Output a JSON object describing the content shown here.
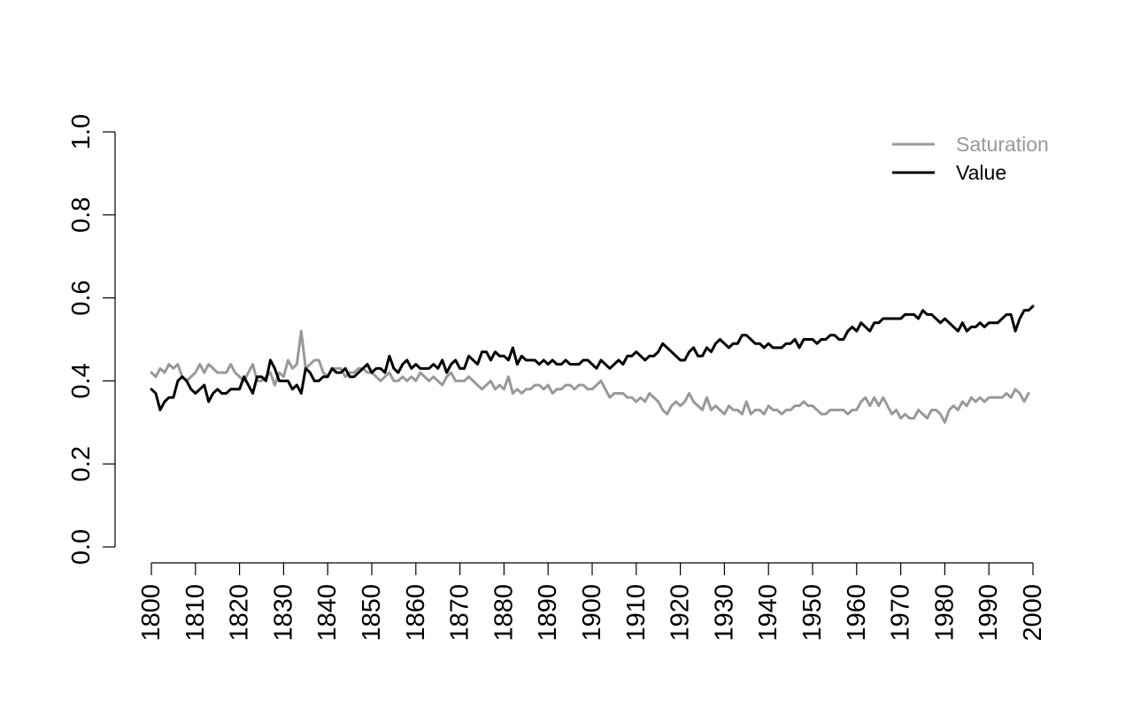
{
  "chart_data": {
    "type": "line",
    "title": "",
    "xlabel": "",
    "ylabel": "",
    "xlim": [
      1800,
      2000
    ],
    "ylim": [
      0,
      1
    ],
    "x_ticks": [
      1800,
      1810,
      1820,
      1830,
      1840,
      1850,
      1860,
      1870,
      1880,
      1890,
      1900,
      1910,
      1920,
      1930,
      1940,
      1950,
      1960,
      1970,
      1980,
      1990,
      2000
    ],
    "y_ticks": [
      "0.0",
      "0.2",
      "0.4",
      "0.6",
      "0.8",
      "1.0"
    ],
    "grid": false,
    "legend_position": "top-right",
    "series": [
      {
        "name": "Saturation",
        "color": "#999999",
        "x_start": 1800,
        "x_step": 1,
        "values": [
          0.42,
          0.41,
          0.43,
          0.42,
          0.44,
          0.43,
          0.44,
          0.41,
          0.4,
          0.41,
          0.42,
          0.44,
          0.42,
          0.44,
          0.43,
          0.42,
          0.42,
          0.42,
          0.44,
          0.42,
          0.41,
          0.4,
          0.42,
          0.44,
          0.4,
          0.4,
          0.41,
          0.42,
          0.39,
          0.42,
          0.41,
          0.45,
          0.43,
          0.44,
          0.52,
          0.43,
          0.44,
          0.45,
          0.45,
          0.42,
          0.41,
          0.43,
          0.43,
          0.43,
          0.41,
          0.42,
          0.42,
          0.43,
          0.43,
          0.42,
          0.42,
          0.41,
          0.4,
          0.41,
          0.42,
          0.4,
          0.4,
          0.41,
          0.4,
          0.41,
          0.4,
          0.42,
          0.41,
          0.4,
          0.41,
          0.4,
          0.39,
          0.41,
          0.42,
          0.4,
          0.4,
          0.4,
          0.41,
          0.4,
          0.39,
          0.38,
          0.39,
          0.4,
          0.38,
          0.39,
          0.38,
          0.41,
          0.37,
          0.38,
          0.37,
          0.38,
          0.38,
          0.39,
          0.39,
          0.38,
          0.39,
          0.37,
          0.38,
          0.38,
          0.39,
          0.39,
          0.38,
          0.39,
          0.39,
          0.38,
          0.38,
          0.39,
          0.4,
          0.38,
          0.36,
          0.37,
          0.37,
          0.37,
          0.36,
          0.36,
          0.35,
          0.36,
          0.35,
          0.37,
          0.36,
          0.35,
          0.33,
          0.32,
          0.34,
          0.35,
          0.34,
          0.35,
          0.37,
          0.35,
          0.34,
          0.33,
          0.36,
          0.33,
          0.34,
          0.33,
          0.32,
          0.34,
          0.33,
          0.33,
          0.32,
          0.35,
          0.32,
          0.33,
          0.33,
          0.32,
          0.34,
          0.33,
          0.33,
          0.32,
          0.33,
          0.33,
          0.34,
          0.34,
          0.35,
          0.34,
          0.34,
          0.33,
          0.32,
          0.32,
          0.33,
          0.33,
          0.33,
          0.33,
          0.32,
          0.33,
          0.33,
          0.35,
          0.36,
          0.34,
          0.36,
          0.34,
          0.36,
          0.34,
          0.32,
          0.33,
          0.31,
          0.32,
          0.31,
          0.31,
          0.33,
          0.32,
          0.31,
          0.33,
          0.33,
          0.32,
          0.3,
          0.33,
          0.34,
          0.33,
          0.35,
          0.34,
          0.36,
          0.35,
          0.36,
          0.35,
          0.36,
          0.36,
          0.36,
          0.36,
          0.37,
          0.36,
          0.38,
          0.37,
          0.35,
          0.37
        ]
      },
      {
        "name": "Value",
        "color": "#000000",
        "x_start": 1800,
        "x_step": 1,
        "values": [
          0.38,
          0.37,
          0.33,
          0.35,
          0.36,
          0.36,
          0.4,
          0.41,
          0.4,
          0.38,
          0.37,
          0.38,
          0.39,
          0.35,
          0.37,
          0.38,
          0.37,
          0.37,
          0.38,
          0.38,
          0.38,
          0.41,
          0.39,
          0.37,
          0.41,
          0.41,
          0.4,
          0.45,
          0.43,
          0.4,
          0.4,
          0.4,
          0.38,
          0.39,
          0.37,
          0.43,
          0.42,
          0.4,
          0.4,
          0.41,
          0.41,
          0.43,
          0.42,
          0.42,
          0.43,
          0.41,
          0.41,
          0.42,
          0.43,
          0.44,
          0.42,
          0.43,
          0.43,
          0.42,
          0.46,
          0.43,
          0.42,
          0.44,
          0.45,
          0.43,
          0.44,
          0.43,
          0.43,
          0.43,
          0.44,
          0.43,
          0.45,
          0.42,
          0.44,
          0.45,
          0.43,
          0.43,
          0.46,
          0.45,
          0.44,
          0.47,
          0.47,
          0.45,
          0.47,
          0.46,
          0.46,
          0.45,
          0.48,
          0.44,
          0.46,
          0.45,
          0.45,
          0.45,
          0.44,
          0.45,
          0.44,
          0.45,
          0.44,
          0.44,
          0.45,
          0.44,
          0.44,
          0.44,
          0.45,
          0.45,
          0.44,
          0.43,
          0.45,
          0.44,
          0.43,
          0.44,
          0.45,
          0.44,
          0.46,
          0.46,
          0.47,
          0.46,
          0.45,
          0.46,
          0.46,
          0.47,
          0.49,
          0.48,
          0.47,
          0.46,
          0.45,
          0.45,
          0.47,
          0.48,
          0.46,
          0.46,
          0.48,
          0.47,
          0.49,
          0.5,
          0.49,
          0.48,
          0.49,
          0.49,
          0.51,
          0.51,
          0.5,
          0.49,
          0.49,
          0.48,
          0.49,
          0.48,
          0.48,
          0.48,
          0.49,
          0.49,
          0.5,
          0.48,
          0.5,
          0.5,
          0.5,
          0.49,
          0.5,
          0.5,
          0.51,
          0.51,
          0.5,
          0.5,
          0.52,
          0.53,
          0.52,
          0.54,
          0.53,
          0.52,
          0.54,
          0.54,
          0.55,
          0.55,
          0.55,
          0.55,
          0.55,
          0.56,
          0.56,
          0.56,
          0.55,
          0.57,
          0.56,
          0.56,
          0.55,
          0.54,
          0.55,
          0.54,
          0.53,
          0.52,
          0.54,
          0.52,
          0.53,
          0.53,
          0.54,
          0.53,
          0.54,
          0.54,
          0.54,
          0.55,
          0.56,
          0.56,
          0.52,
          0.55,
          0.57,
          0.57,
          0.58
        ]
      }
    ]
  }
}
